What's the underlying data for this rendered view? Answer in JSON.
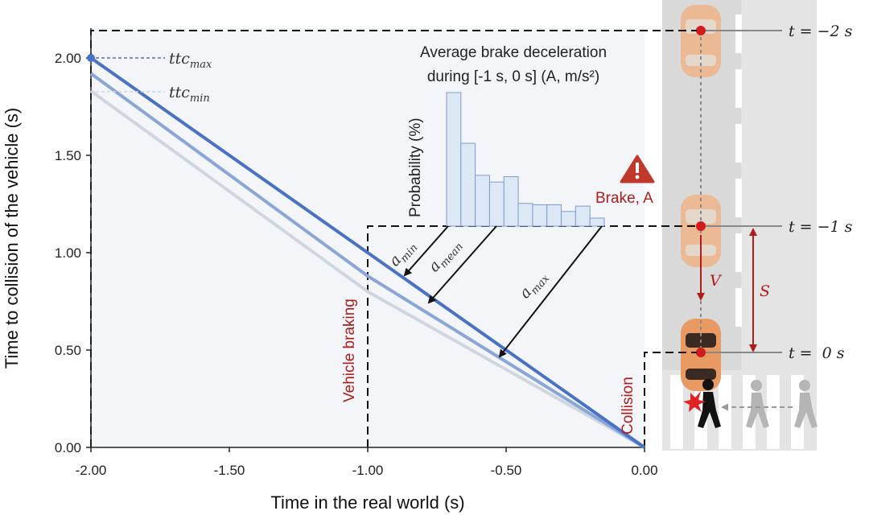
{
  "chart_data": {
    "type": "line",
    "xlabel": "Time in the real world (s)",
    "ylabel": "Time to collision of the vehicle (s)",
    "xlim": [
      -2.0,
      0.0
    ],
    "ylim": [
      0.0,
      2.2
    ],
    "x_ticks": [
      "-2.00",
      "-1.50",
      "-1.00",
      "-0.50",
      "0.00"
    ],
    "y_ticks": [
      "0.00",
      "0.50",
      "1.00",
      "1.50",
      "2.00"
    ],
    "series": [
      {
        "name": "ttc_max",
        "color": "#4a72c4",
        "points": [
          [
            -2.0,
            2.0
          ],
          [
            -1.0,
            1.0
          ],
          [
            0.0,
            0.0
          ]
        ]
      },
      {
        "name": "",
        "color": "#8aa6d6",
        "points": [
          [
            -2.0,
            1.92
          ],
          [
            -1.0,
            0.88
          ],
          [
            0.0,
            0.0
          ]
        ]
      },
      {
        "name": "ttc_min",
        "color": "#d0d6df",
        "points": [
          [
            -2.0,
            1.83
          ],
          [
            -1.0,
            0.8
          ],
          [
            0.0,
            0.0
          ]
        ]
      }
    ],
    "annotations": {
      "ttc_max_base": "ttc",
      "ttc_max_sub": "max",
      "ttc_min_base": "ttc",
      "ttc_min_sub": "min",
      "vehicle_braking": "Vehicle braking",
      "collision": "Collision",
      "a_min_base": "a",
      "a_min_sub": "min",
      "a_mean_base": "a",
      "a_mean_sub": "mean",
      "a_max_base": "a",
      "a_max_sub": "max"
    },
    "histogram": {
      "title_line1": "Average brake deceleration",
      "title_line2": "during [-1 s, 0 s] (A, m/s²)",
      "ylabel": "Probability (%)",
      "values": [
        100,
        62,
        38,
        33,
        37,
        17,
        16,
        16,
        11,
        15,
        6
      ]
    },
    "scene": {
      "brake_label": "Brake, A",
      "v_label": "V",
      "s_label": "S",
      "t_labels": [
        "t = −2 s",
        "t = −1 s",
        "t =  0 s"
      ]
    }
  }
}
